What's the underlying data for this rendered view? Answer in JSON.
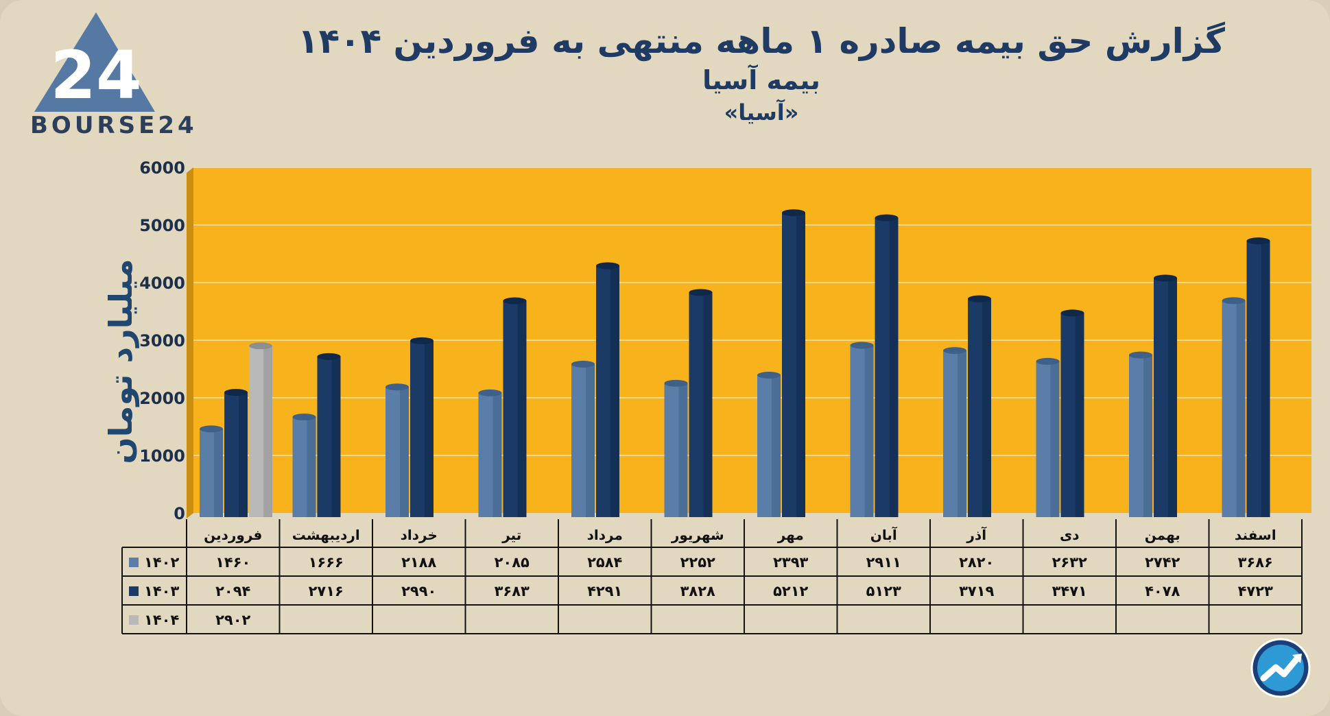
{
  "header": {
    "title": "گزارش  حق بیمه صادره ۱ ماهه منتهی به فروردین ۱۴۰۴",
    "company": "بیمه آسیا",
    "symbol": "«آسیا»"
  },
  "logo": {
    "text": "BOURSE24",
    "mark": "24"
  },
  "colors": {
    "background": "#e2d8bf",
    "plot_bg": "#f8b31c",
    "series_1402": "#5a7ea8",
    "series_1403": "#1b3a66",
    "series_1404": "#b9b9b9",
    "title": "#1f3b63"
  },
  "chart_data": {
    "type": "bar",
    "ylabel": "میلیارد تومان",
    "ylim": [
      0,
      6000
    ],
    "yticks": [
      0,
      1000,
      2000,
      3000,
      4000,
      5000,
      6000
    ],
    "ytick_labels": [
      "0",
      "1000",
      "2000",
      "3000",
      "4000",
      "5000",
      "6000"
    ],
    "categories": [
      "فروردین",
      "اردیبهشت",
      "خرداد",
      "تیر",
      "مرداد",
      "شهریور",
      "مهر",
      "آبان",
      "آذر",
      "دی",
      "بهمن",
      "اسفند"
    ],
    "series": [
      {
        "name": "۱۴۰۲",
        "color": "#5a7ea8",
        "values": [
          1460,
          1666,
          2188,
          2085,
          2584,
          2252,
          2393,
          2911,
          2820,
          2632,
          2742,
          3686
        ],
        "labels": [
          "۱۴۶۰",
          "۱۶۶۶",
          "۲۱۸۸",
          "۲۰۸۵",
          "۲۵۸۴",
          "۲۲۵۲",
          "۲۳۹۳",
          "۲۹۱۱",
          "۲۸۲۰",
          "۲۶۳۲",
          "۲۷۴۲",
          "۳۶۸۶"
        ]
      },
      {
        "name": "۱۴۰۳",
        "color": "#1b3a66",
        "values": [
          2094,
          2716,
          2990,
          3683,
          4291,
          3828,
          5212,
          5123,
          3719,
          3471,
          4078,
          4723
        ],
        "labels": [
          "۲۰۹۴",
          "۲۷۱۶",
          "۲۹۹۰",
          "۳۶۸۳",
          "۴۲۹۱",
          "۳۸۲۸",
          "۵۲۱۲",
          "۵۱۲۳",
          "۳۷۱۹",
          "۳۴۷۱",
          "۴۰۷۸",
          "۴۷۲۳"
        ]
      },
      {
        "name": "۱۴۰۴",
        "color": "#b9b9b9",
        "values": [
          2902,
          null,
          null,
          null,
          null,
          null,
          null,
          null,
          null,
          null,
          null,
          null
        ],
        "labels": [
          "۲۹۰۲",
          "",
          "",
          "",
          "",
          "",
          "",
          "",
          "",
          "",
          "",
          ""
        ]
      }
    ]
  }
}
